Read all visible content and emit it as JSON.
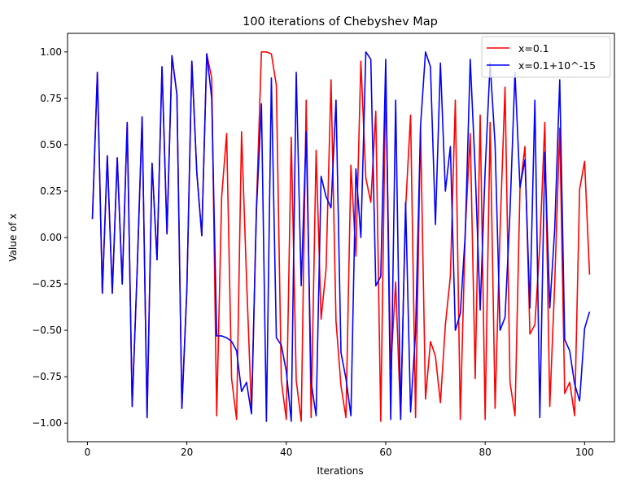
{
  "chart_data": {
    "type": "line",
    "title": "100 iterations of Chebyshev Map",
    "xlabel": "Iterations",
    "ylabel": "Value of x",
    "xlim": [
      -4.0,
      106.0
    ],
    "ylim": [
      -1.1,
      1.1
    ],
    "xticks": [
      0,
      20,
      40,
      60,
      80,
      100
    ],
    "yticks": [
      -1.0,
      -0.75,
      -0.5,
      -0.25,
      0.0,
      0.25,
      0.5,
      0.75,
      1.0
    ],
    "xtick_labels": [
      "0",
      "20",
      "40",
      "60",
      "80",
      "100"
    ],
    "ytick_labels": [
      "−1.00",
      "−0.75",
      "−0.50",
      "−0.25",
      "0.00",
      "0.25",
      "0.50",
      "0.75",
      "1.00"
    ],
    "grid": false,
    "legend_position": "top-right",
    "x": [
      1,
      2,
      3,
      4,
      5,
      6,
      7,
      8,
      9,
      10,
      11,
      12,
      13,
      14,
      15,
      16,
      17,
      18,
      19,
      20,
      21,
      22,
      23,
      24,
      25,
      26,
      27,
      28,
      29,
      30,
      31,
      32,
      33,
      34,
      35,
      36,
      37,
      38,
      39,
      40,
      41,
      42,
      43,
      44,
      45,
      46,
      47,
      48,
      49,
      50,
      51,
      52,
      53,
      54,
      55,
      56,
      57,
      58,
      59,
      60,
      61,
      62,
      63,
      64,
      65,
      66,
      67,
      68,
      69,
      70,
      71,
      72,
      73,
      74,
      75,
      76,
      77,
      78,
      79,
      80,
      81,
      82,
      83,
      84,
      85,
      86,
      87,
      88,
      89,
      90,
      91,
      92,
      93,
      94,
      95,
      96,
      97,
      98,
      99,
      100,
      101
    ],
    "series": [
      {
        "name": "x=0.1",
        "color": "#ff0000",
        "values": [
          0.1,
          0.89,
          -0.3,
          0.44,
          -0.3,
          0.43,
          -0.25,
          0.62,
          -0.91,
          -0.18,
          0.65,
          -0.97,
          0.4,
          -0.12,
          0.92,
          0.02,
          0.98,
          0.77,
          -0.92,
          -0.28,
          0.95,
          0.35,
          0.01,
          0.99,
          0.86,
          -0.96,
          0.22,
          0.56,
          -0.76,
          -0.98,
          0.57,
          -0.22,
          -0.94,
          0.17,
          1.0,
          1.0,
          0.99,
          0.82,
          -0.77,
          -0.98,
          0.54,
          -0.77,
          -0.99,
          0.74,
          -0.97,
          0.47,
          -0.44,
          -0.17,
          0.85,
          -0.45,
          -0.8,
          -0.97,
          0.39,
          -0.1,
          0.95,
          0.32,
          0.19,
          0.68,
          -0.99,
          0.87,
          -0.71,
          -0.24,
          -0.98,
          0.16,
          0.66,
          -0.97,
          0.6,
          -0.87,
          -0.56,
          -0.64,
          -0.89,
          -0.47,
          -0.21,
          0.74,
          -0.98,
          0.04,
          0.56,
          -0.76,
          0.66,
          -0.98,
          0.62,
          -0.92,
          0.04,
          0.81,
          -0.78,
          -0.96,
          0.26,
          0.49,
          -0.52,
          -0.47,
          -0.04,
          0.62,
          -0.91,
          -0.24,
          0.59,
          -0.84,
          -0.78,
          -0.96,
          0.26,
          0.41,
          -0.2
        ]
      },
      {
        "name": "x=0.1+10^-15",
        "color": "#0000ff",
        "values": [
          0.1,
          0.89,
          -0.3,
          0.44,
          -0.3,
          0.43,
          -0.25,
          0.62,
          -0.91,
          -0.18,
          0.65,
          -0.97,
          0.4,
          -0.12,
          0.92,
          0.02,
          0.98,
          0.77,
          -0.92,
          -0.28,
          0.95,
          0.35,
          0.01,
          0.99,
          0.75,
          -0.53,
          -0.53,
          -0.54,
          -0.56,
          -0.61,
          -0.83,
          -0.78,
          -0.95,
          0.15,
          0.72,
          -0.99,
          0.86,
          -0.54,
          -0.58,
          -0.72,
          -0.99,
          0.89,
          -0.26,
          0.57,
          -0.78,
          -0.96,
          0.33,
          0.22,
          0.16,
          0.74,
          -0.62,
          -0.76,
          -0.96,
          0.37,
          -0.0,
          1.0,
          0.96,
          -0.26,
          -0.21,
          0.96,
          -0.98,
          0.74,
          -0.98,
          0.19,
          -0.94,
          -0.51,
          0.6,
          1.0,
          0.92,
          0.07,
          0.94,
          0.25,
          0.49,
          -0.5,
          -0.41,
          0.02,
          0.96,
          0.36,
          -0.39,
          0.36,
          0.94,
          0.5,
          -0.5,
          -0.43,
          0.14,
          0.89,
          0.27,
          0.42,
          -0.38,
          0.74,
          -0.97,
          0.46,
          -0.38,
          0.05,
          0.85,
          -0.55,
          -0.61,
          -0.79,
          -0.88,
          -0.49,
          -0.4
        ]
      }
    ]
  }
}
